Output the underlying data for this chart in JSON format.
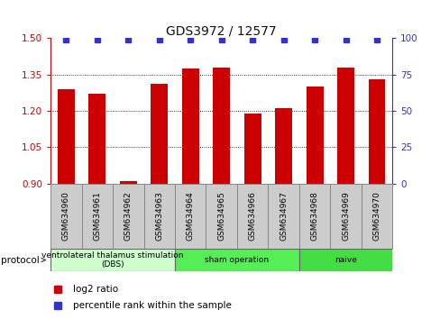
{
  "title": "GDS3972 / 12577",
  "samples": [
    "GSM634960",
    "GSM634961",
    "GSM634962",
    "GSM634963",
    "GSM634964",
    "GSM634965",
    "GSM634966",
    "GSM634967",
    "GSM634968",
    "GSM634969",
    "GSM634970"
  ],
  "log2_ratio": [
    1.29,
    1.27,
    0.91,
    1.31,
    1.375,
    1.38,
    1.19,
    1.21,
    1.3,
    1.38,
    1.33
  ],
  "ylim_left": [
    0.9,
    1.5
  ],
  "ylim_right": [
    0,
    100
  ],
  "yticks_left": [
    0.9,
    1.05,
    1.2,
    1.35,
    1.5
  ],
  "yticks_right": [
    0,
    25,
    50,
    75,
    100
  ],
  "bar_color": "#cc0000",
  "dot_color": "#3333cc",
  "protocol_groups": [
    {
      "label": "ventrolateral thalamus stimulation\n(DBS)",
      "start": 0,
      "end": 3,
      "color": "#ccffcc"
    },
    {
      "label": "sham operation",
      "start": 4,
      "end": 7,
      "color": "#55ee55"
    },
    {
      "label": "naive",
      "start": 8,
      "end": 10,
      "color": "#44dd44"
    }
  ],
  "left_axis_color": "#cc0000",
  "right_axis_color": "#3333cc",
  "sample_box_color": "#cccccc",
  "sample_box_edge": "#888888"
}
